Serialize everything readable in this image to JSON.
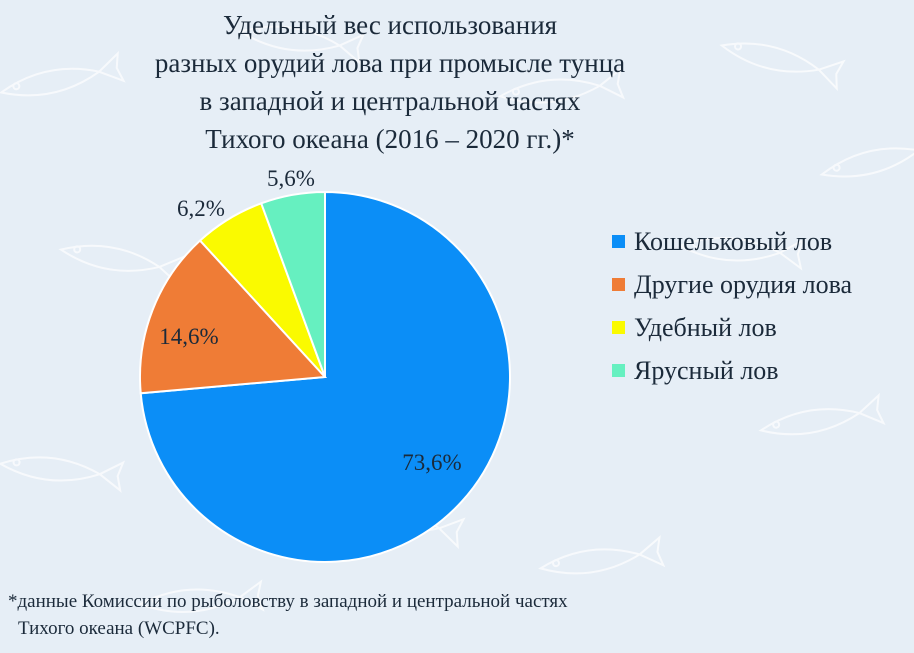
{
  "title_lines": [
    "Удельный вес использования",
    "разных орудий лова при промысле тунца",
    "в западной и центральной частях",
    "Тихого  океана (2016 – 2020 гг.)*"
  ],
  "chart_data": {
    "type": "pie",
    "labels": [
      "Кошельковый лов",
      "Другие орудия лова",
      "Удебный лов",
      "Ярусный лов"
    ],
    "values": [
      73.6,
      14.6,
      6.2,
      5.6
    ],
    "value_labels": [
      "73,6%",
      "14,6%",
      "6,2%",
      "5,6%"
    ],
    "colors": [
      "#0b8ef7",
      "#ef7c36",
      "#fafa00",
      "#66f0c0"
    ],
    "start_angle": "12 o'clock",
    "direction": "clockwise",
    "legend_position": "right"
  },
  "footnote": {
    "line1": "*данные Комиссии по рыболовству в западной и центральной частях",
    "line2": "Тихого океана (WCPFC)."
  }
}
